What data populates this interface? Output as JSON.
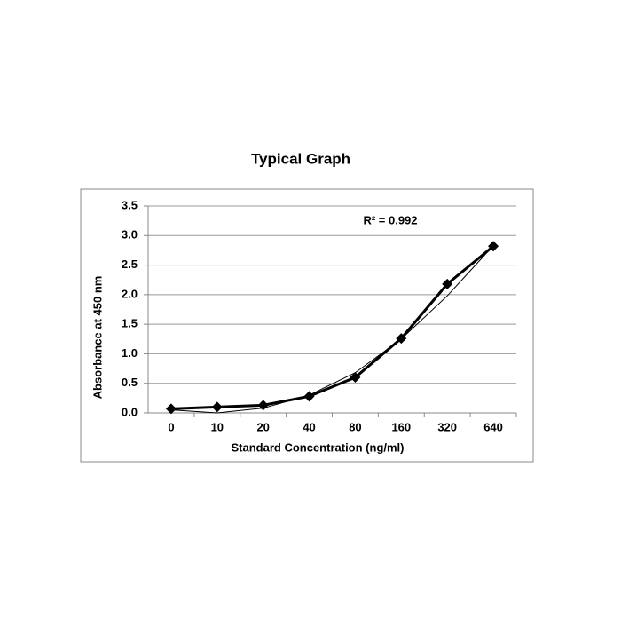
{
  "chart_data": {
    "type": "line",
    "title": "Typical Graph",
    "x_label": "Standard Concentration (ng/ml)",
    "y_label": "Absorbance at 450 nm",
    "annotation": "R² = 0.992",
    "categories": [
      "0",
      "10",
      "20",
      "40",
      "80",
      "160",
      "320",
      "640"
    ],
    "values": [
      0.07,
      0.1,
      0.13,
      0.28,
      0.6,
      1.26,
      2.18,
      2.82
    ],
    "trendline": [
      0.05,
      0.0,
      0.08,
      0.3,
      0.68,
      1.25,
      1.98,
      2.83
    ],
    "color": "#000000",
    "ylim": [
      0,
      3.5
    ],
    "yticks": [
      {
        "value": 0,
        "label": "0.0"
      },
      0.5,
      {
        "value": 1,
        "label": "1.0"
      },
      1.5,
      {
        "value": 2,
        "label": "2.0"
      },
      2.5,
      {
        "value": 3,
        "label": "3.0"
      },
      3.5
    ],
    "grid": true
  }
}
